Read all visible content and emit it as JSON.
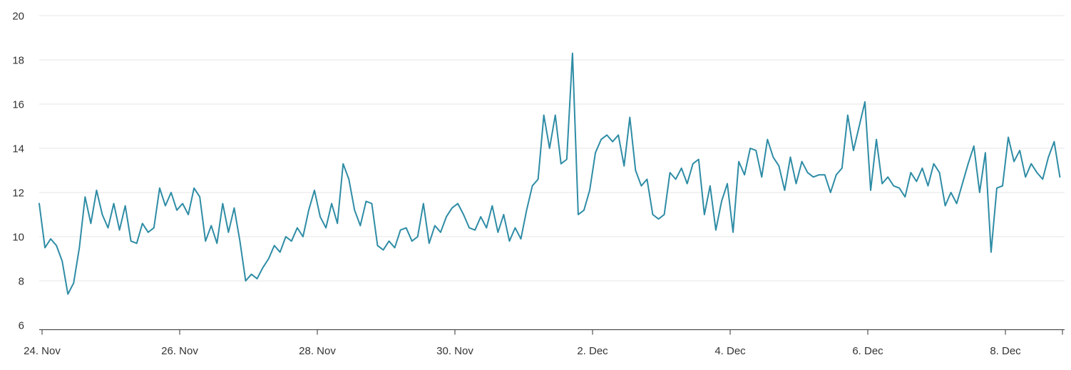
{
  "page": {
    "background": "#ffffff"
  },
  "chart_data": {
    "type": "line",
    "title": "",
    "xlabel": "",
    "ylabel": "",
    "legend": "none",
    "grid": "horizontal",
    "ylim": [
      6,
      20
    ],
    "y_ticks": [
      20,
      18,
      16,
      14,
      12,
      10,
      8,
      6
    ],
    "x_tick_labels": [
      "24. Nov",
      "26. Nov",
      "28. Nov",
      "30. Nov",
      "2. Dec",
      "4. Dec",
      "6. Dec",
      "8. Dec"
    ],
    "interval_hours": 2,
    "points_per_day": 12,
    "colors": {
      "line": "#2e8ca5",
      "grid": "#e6e6e6",
      "axis": "#333333",
      "label": "#333333"
    },
    "series": [
      {
        "name": "value",
        "start": "24. Nov",
        "values": [
          11.5,
          9.5,
          9.9,
          9.6,
          8.9,
          7.4,
          7.9,
          9.5,
          11.8,
          10.6,
          12.1,
          11.0,
          10.4,
          11.5,
          10.3,
          11.4,
          9.8,
          9.7,
          10.6,
          10.2,
          10.4,
          12.2,
          11.4,
          12.0,
          11.2,
          11.5,
          11.0,
          12.2,
          11.8,
          9.8,
          10.5,
          9.7,
          11.5,
          10.2,
          11.3,
          9.8,
          8.0,
          8.3,
          8.1,
          8.6,
          9.0,
          9.6,
          9.3,
          10.0,
          9.8,
          10.4,
          10.0,
          11.2,
          12.1,
          10.9,
          10.4,
          11.5,
          10.6,
          13.3,
          12.6,
          11.2,
          10.5,
          11.6,
          11.5,
          9.6,
          9.4,
          9.8,
          9.5,
          10.3,
          10.4,
          9.8,
          10.0,
          11.5,
          9.7,
          10.5,
          10.2,
          10.9,
          11.3,
          11.5,
          11.0,
          10.4,
          10.3,
          10.9,
          10.4,
          11.4,
          10.2,
          11.0,
          9.8,
          10.4,
          9.9,
          11.2,
          12.3,
          12.6,
          15.5,
          14.0,
          15.5,
          13.3,
          13.5,
          18.3,
          11.0,
          11.2,
          12.1,
          13.8,
          14.4,
          14.6,
          14.3,
          14.6,
          13.2,
          15.4,
          13.0,
          12.3,
          12.6,
          11.0,
          10.8,
          11.0,
          12.9,
          12.6,
          13.1,
          12.4,
          13.3,
          13.5,
          11.0,
          12.3,
          10.3,
          11.6,
          12.4,
          10.2,
          13.4,
          12.8,
          14.0,
          13.9,
          12.7,
          14.4,
          13.6,
          13.2,
          12.1,
          13.6,
          12.4,
          13.4,
          12.9,
          12.7,
          12.8,
          12.8,
          12.0,
          12.8,
          13.1,
          15.5,
          13.9,
          15.0,
          16.1,
          12.1,
          14.4,
          12.4,
          12.7,
          12.3,
          12.2,
          11.8,
          12.9,
          12.5,
          13.1,
          12.3,
          13.3,
          12.9,
          11.4,
          12.0,
          11.5,
          12.4,
          13.3,
          14.1,
          12.0,
          13.8,
          9.3,
          12.2,
          12.3,
          14.5,
          13.4,
          13.9,
          12.7,
          13.3,
          12.9,
          12.6,
          13.6,
          14.3,
          12.7
        ]
      }
    ]
  }
}
